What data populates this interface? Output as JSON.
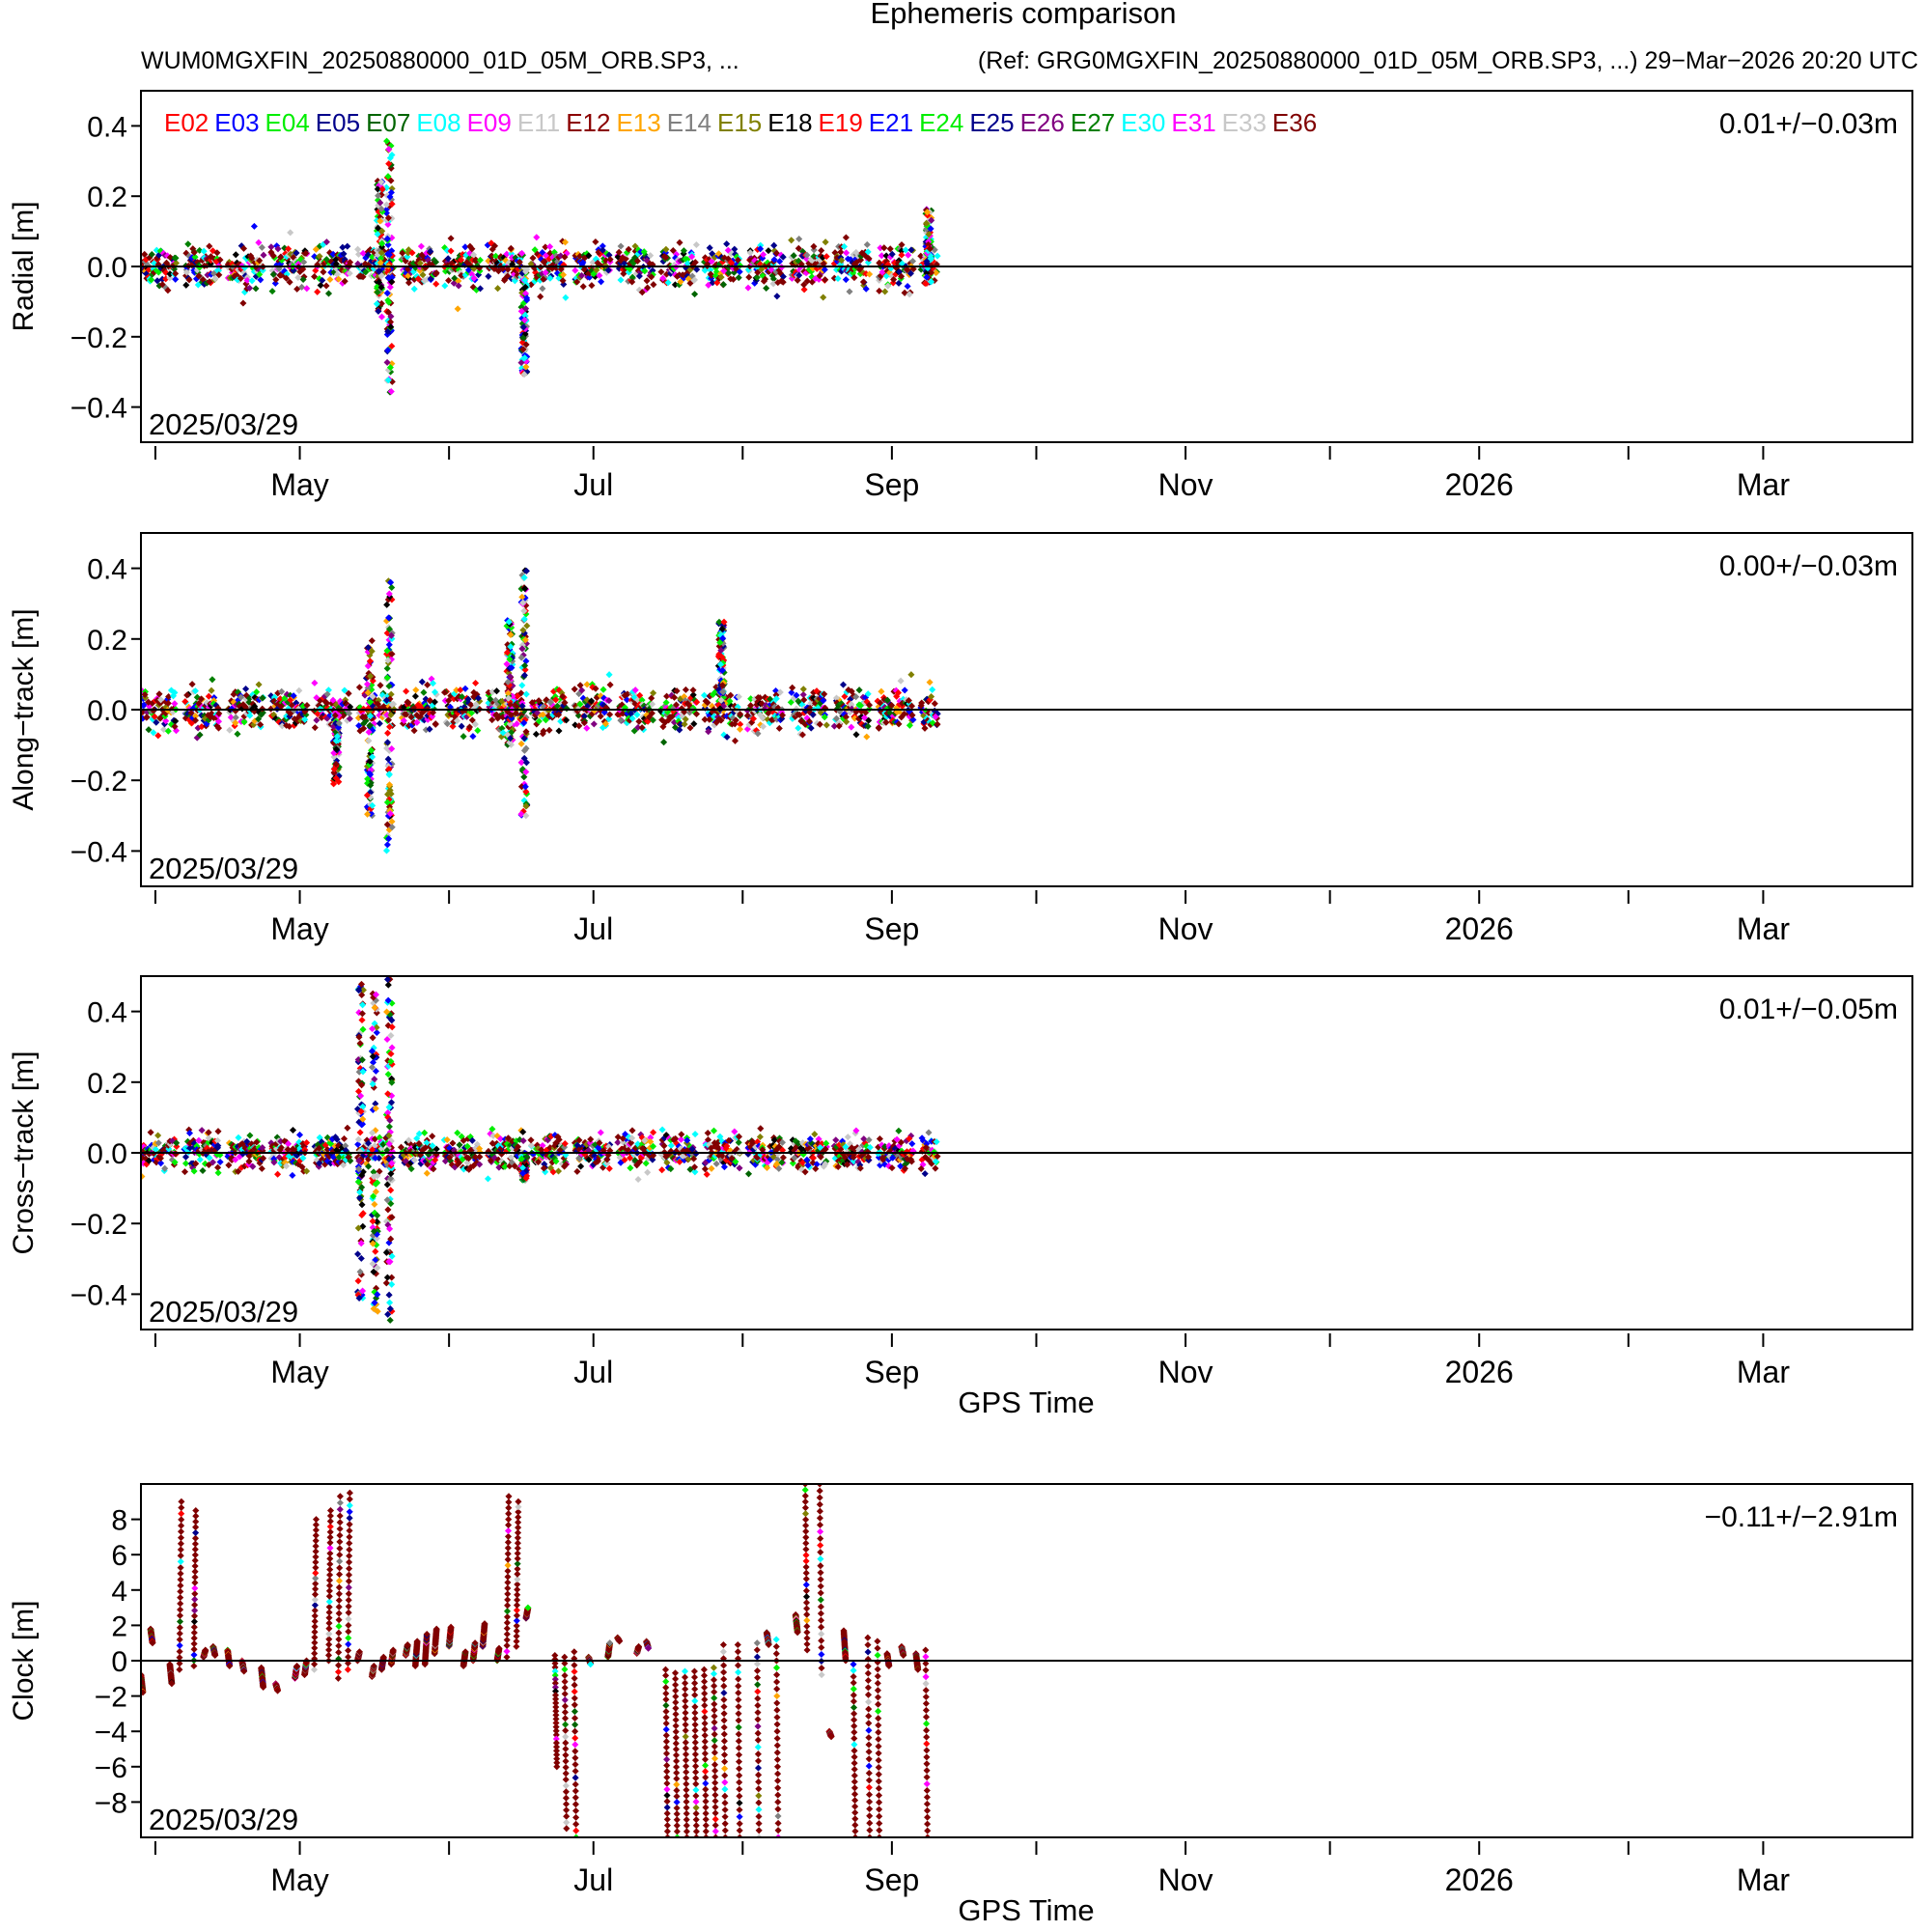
{
  "header": {
    "title": "Ephemeris comparison",
    "files": "WUM0MGXFIN_20250880000_01D_05M_ORB.SP3, ...",
    "ref": "(Ref: GRG0MGXFIN_20250880000_01D_05M_ORB.SP3, ...) 29−Mar−2026 20:20 UTC"
  },
  "legend": {
    "satellites": [
      {
        "name": "E02",
        "color": "#ff0000"
      },
      {
        "name": "E03",
        "color": "#0000ff"
      },
      {
        "name": "E04",
        "color": "#00ee00"
      },
      {
        "name": "E05",
        "color": "#00008b"
      },
      {
        "name": "E07",
        "color": "#006400"
      },
      {
        "name": "E08",
        "color": "#00ffff"
      },
      {
        "name": "E09",
        "color": "#ff00ff"
      },
      {
        "name": "E11",
        "color": "#c8c8c8"
      },
      {
        "name": "E12",
        "color": "#8b0000"
      },
      {
        "name": "E13",
        "color": "#ffa500"
      },
      {
        "name": "E14",
        "color": "#808080"
      },
      {
        "name": "E15",
        "color": "#808000"
      },
      {
        "name": "E18",
        "color": "#000000"
      },
      {
        "name": "E19",
        "color": "#ff0000"
      },
      {
        "name": "E21",
        "color": "#0000ff"
      },
      {
        "name": "E24",
        "color": "#00ee00"
      },
      {
        "name": "E25",
        "color": "#00008b"
      },
      {
        "name": "E26",
        "color": "#800080"
      },
      {
        "name": "E27",
        "color": "#008000"
      },
      {
        "name": "E30",
        "color": "#00ffff"
      },
      {
        "name": "E31",
        "color": "#ff00ff"
      },
      {
        "name": "E33",
        "color": "#c8c8c8"
      },
      {
        "name": "E36",
        "color": "#800000"
      }
    ]
  },
  "chart_data": [
    {
      "type": "scatter",
      "ylabel": "Radial [m]",
      "xlabel": "",
      "stats": "0.01+/−0.03m",
      "date_label": "2025/03/29",
      "ylim": [
        -0.5,
        0.5
      ],
      "yticks": [
        -0.4,
        -0.2,
        0.0,
        0.2,
        0.4
      ],
      "ytick_labels": [
        "−0.4",
        "−0.2",
        "0.0",
        "0.2",
        "0.4"
      ],
      "xlim": [
        "2025-03-29",
        "2026-04-01"
      ],
      "xtick_labels": [
        "May",
        "Jul",
        "Sep",
        "Nov",
        "2026",
        "Mar"
      ],
      "xtick_dates": [
        "2025-05-01",
        "2025-07-01",
        "2025-09-01",
        "2025-11-01",
        "2026-01-01",
        "2026-03-01"
      ],
      "data_end": "2025-09-10",
      "noise_sd": 0.03,
      "clusters": [
        {
          "date": "2025-05-19",
          "range": [
            -0.36,
            0.36
          ]
        },
        {
          "date": "2025-05-17",
          "range": [
            -0.15,
            0.25
          ]
        },
        {
          "date": "2025-06-16",
          "range": [
            -0.31,
            0.0
          ]
        },
        {
          "date": "2025-09-08",
          "range": [
            -0.05,
            0.17
          ]
        }
      ]
    },
    {
      "type": "scatter",
      "ylabel": "Along−track [m]",
      "xlabel": "",
      "stats": "0.00+/−0.03m",
      "date_label": "2025/03/29",
      "ylim": [
        -0.5,
        0.5
      ],
      "yticks": [
        -0.4,
        -0.2,
        0.0,
        0.2,
        0.4
      ],
      "ytick_labels": [
        "−0.4",
        "−0.2",
        "0.0",
        "0.2",
        "0.4"
      ],
      "xlim": [
        "2025-03-29",
        "2026-04-01"
      ],
      "xtick_labels": [
        "May",
        "Jul",
        "Sep",
        "Nov",
        "2026",
        "Mar"
      ],
      "xtick_dates": [
        "2025-05-01",
        "2025-07-01",
        "2025-09-01",
        "2025-11-01",
        "2026-01-01",
        "2026-03-01"
      ],
      "data_end": "2025-09-10",
      "noise_sd": 0.03,
      "clusters": [
        {
          "date": "2025-05-19",
          "range": [
            -0.41,
            0.38
          ]
        },
        {
          "date": "2025-05-15",
          "range": [
            -0.31,
            0.2
          ]
        },
        {
          "date": "2025-06-13",
          "range": [
            -0.1,
            0.26
          ]
        },
        {
          "date": "2025-06-16",
          "range": [
            -0.31,
            0.4
          ]
        },
        {
          "date": "2025-07-27",
          "range": [
            0.0,
            0.25
          ]
        },
        {
          "date": "2025-05-08",
          "range": [
            -0.21,
            0.0
          ]
        }
      ]
    },
    {
      "type": "scatter",
      "ylabel": "Cross−track [m]",
      "xlabel": "GPS Time",
      "stats": "0.01+/−0.05m",
      "date_label": "2025/03/29",
      "ylim": [
        -0.5,
        0.5
      ],
      "yticks": [
        -0.4,
        -0.2,
        0.0,
        0.2,
        0.4
      ],
      "ytick_labels": [
        "−0.4",
        "−0.2",
        "0.0",
        "0.2",
        "0.4"
      ],
      "xlim": [
        "2025-03-29",
        "2026-04-01"
      ],
      "xtick_labels": [
        "May",
        "Jul",
        "Sep",
        "Nov",
        "2026",
        "Mar"
      ],
      "xtick_dates": [
        "2025-05-01",
        "2025-07-01",
        "2025-09-01",
        "2025-11-01",
        "2026-01-01",
        "2026-03-01"
      ],
      "data_end": "2025-09-10",
      "noise_sd": 0.025,
      "clusters": [
        {
          "date": "2025-05-13",
          "range": [
            -0.42,
            0.48
          ]
        },
        {
          "date": "2025-05-16",
          "range": [
            -0.45,
            0.46
          ]
        },
        {
          "date": "2025-05-19",
          "range": [
            -0.49,
            0.5
          ]
        },
        {
          "date": "2025-06-16",
          "range": [
            -0.08,
            0.0
          ]
        }
      ]
    },
    {
      "type": "scatter",
      "ylabel": "Clock [m]",
      "xlabel": "GPS Time",
      "stats": "−0.11+/−2.91m",
      "date_label": "2025/03/29",
      "ylim": [
        -10,
        10
      ],
      "yticks": [
        -8,
        -6,
        -4,
        -2,
        0,
        2,
        4,
        6,
        8
      ],
      "ytick_labels": [
        "−8",
        "−6",
        "−4",
        "−2",
        "0",
        "2",
        "4",
        "6",
        "8"
      ],
      "xlim": [
        "2025-03-29",
        "2026-04-01"
      ],
      "xtick_labels": [
        "May",
        "Jul",
        "Sep",
        "Nov",
        "2026",
        "Mar"
      ],
      "xtick_dates": [
        "2025-05-01",
        "2025-07-01",
        "2025-09-01",
        "2025-11-01",
        "2026-01-01",
        "2026-03-01"
      ],
      "data_end": "2025-09-10",
      "segments": [
        [
          "2025-03-29",
          -0.8,
          -1.8
        ],
        [
          "2025-03-31",
          1.8,
          1.0
        ],
        [
          "2025-04-04",
          -0.2,
          -1.3
        ],
        [
          "2025-04-06",
          -0.5,
          9.0
        ],
        [
          "2025-04-09",
          -0.3,
          8.5
        ],
        [
          "2025-04-11",
          0.2,
          0.6
        ],
        [
          "2025-04-13",
          0.8,
          0.3
        ],
        [
          "2025-04-16",
          0.6,
          -0.3
        ],
        [
          "2025-04-19",
          0.0,
          -0.6
        ],
        [
          "2025-04-23",
          -0.4,
          -1.5
        ],
        [
          "2025-04-26",
          -1.3,
          -1.7
        ],
        [
          "2025-04-30",
          -1.0,
          -0.3
        ],
        [
          "2025-05-02",
          -0.8,
          0.0
        ],
        [
          "2025-05-04",
          -0.5,
          8.0
        ],
        [
          "2025-05-07",
          0.0,
          8.5
        ],
        [
          "2025-05-09",
          -1.0,
          9.3
        ],
        [
          "2025-05-11",
          -0.5,
          9.5
        ],
        [
          "2025-05-13",
          0.0,
          0.5
        ],
        [
          "2025-05-16",
          -0.9,
          -0.3
        ],
        [
          "2025-05-18",
          -0.5,
          0.2
        ],
        [
          "2025-05-20",
          -0.2,
          0.6
        ],
        [
          "2025-05-23",
          0.3,
          0.9
        ],
        [
          "2025-05-25",
          -0.3,
          1.1
        ],
        [
          "2025-05-27",
          -0.2,
          1.5
        ],
        [
          "2025-05-29",
          0.4,
          1.8
        ],
        [
          "2025-06-01",
          0.8,
          1.9
        ],
        [
          "2025-06-04",
          -0.3,
          0.5
        ],
        [
          "2025-06-06",
          0.0,
          1.0
        ],
        [
          "2025-06-08",
          0.8,
          2.1
        ],
        [
          "2025-06-11",
          0.0,
          0.7
        ],
        [
          "2025-06-13",
          0.2,
          9.3
        ],
        [
          "2025-06-15",
          0.8,
          9.0
        ],
        [
          "2025-06-17",
          2.4,
          3.0
        ],
        [
          "2025-06-23",
          0.3,
          -6.0
        ],
        [
          "2025-06-25",
          0.2,
          -9.5
        ],
        [
          "2025-06-27",
          0.5,
          -10.0
        ],
        [
          "2025-06-30",
          0.2,
          -0.2
        ],
        [
          "2025-07-04",
          0.2,
          1.0
        ],
        [
          "2025-07-06",
          1.3,
          1.1
        ],
        [
          "2025-07-10",
          0.4,
          0.8
        ],
        [
          "2025-07-12",
          1.1,
          0.7
        ],
        [
          "2025-07-16",
          -0.5,
          -10.0
        ],
        [
          "2025-07-18",
          -0.7,
          -10.0
        ],
        [
          "2025-07-20",
          -0.6,
          -10.0
        ],
        [
          "2025-07-22",
          -0.6,
          -10.0
        ],
        [
          "2025-07-24",
          -0.5,
          -10.0
        ],
        [
          "2025-07-26",
          -0.4,
          -10.0
        ],
        [
          "2025-07-28",
          0.9,
          -10.0
        ],
        [
          "2025-07-31",
          0.9,
          -10.0
        ],
        [
          "2025-08-04",
          1.0,
          -10.0
        ],
        [
          "2025-08-06",
          1.6,
          0.9
        ],
        [
          "2025-08-08",
          1.2,
          -10.0
        ],
        [
          "2025-08-12",
          2.6,
          1.6
        ],
        [
          "2025-08-14",
          10.0,
          0.6
        ],
        [
          "2025-08-17",
          10.0,
          -0.8
        ],
        [
          "2025-08-19",
          -4.0,
          -4.3
        ],
        [
          "2025-08-22",
          1.7,
          0.0
        ],
        [
          "2025-08-24",
          -0.2,
          -10.0
        ],
        [
          "2025-08-27",
          1.3,
          -10.0
        ],
        [
          "2025-08-29",
          1.1,
          -10.0
        ],
        [
          "2025-08-31",
          0.4,
          -0.3
        ],
        [
          "2025-09-03",
          0.8,
          0.3
        ],
        [
          "2025-09-06",
          0.4,
          -0.5
        ],
        [
          "2025-09-08",
          0.6,
          -10.0
        ]
      ]
    }
  ]
}
